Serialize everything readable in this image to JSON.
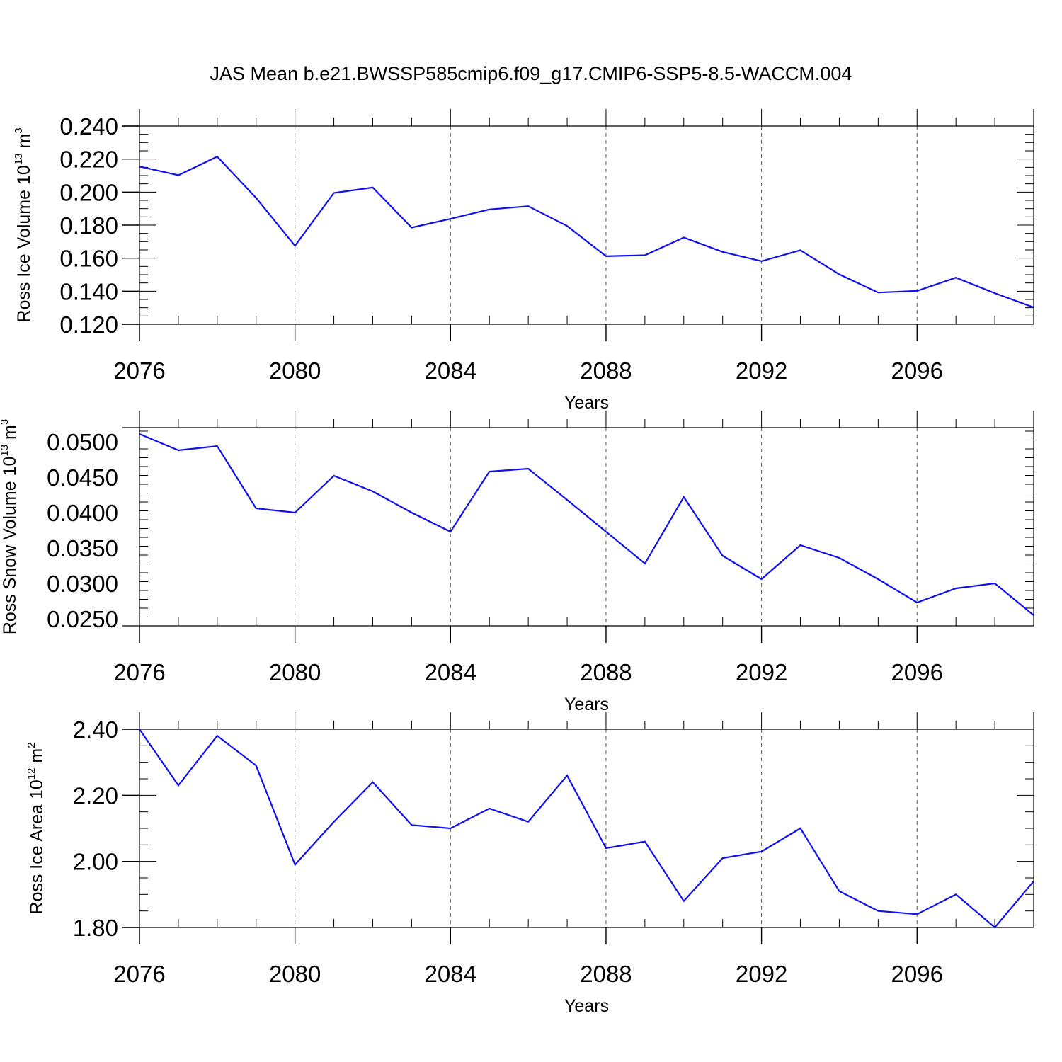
{
  "title": "JAS Mean b.e21.BWSSP585cmip6.f09_g17.CMIP6-SSP5-8.5-WACCM.004",
  "colors": {
    "line": "#1010ee",
    "axis": "#000000",
    "grid": "#555555"
  },
  "chart_data": [
    {
      "type": "line",
      "ylabel": {
        "text": "Ross Ice Volume 10",
        "exp": "13",
        "unit": " m",
        "unit_exp": "3"
      },
      "xlabel": "Years",
      "x": [
        2076,
        2077,
        2078,
        2079,
        2080,
        2081,
        2082,
        2083,
        2084,
        2085,
        2086,
        2087,
        2088,
        2089,
        2090,
        2091,
        2092,
        2093,
        2094,
        2095,
        2096,
        2097,
        2098,
        2099
      ],
      "series": [
        {
          "values": [
            0.2155,
            0.2102,
            0.2215,
            0.1965,
            0.1675,
            0.1995,
            0.2028,
            0.1785,
            0.1838,
            0.1895,
            0.1915,
            0.1795,
            0.1612,
            0.1618,
            0.1725,
            0.1638,
            0.1582,
            0.1648,
            0.1502,
            0.1392,
            0.1402,
            0.1482,
            0.1388,
            0.1302
          ]
        }
      ],
      "xlim": [
        2076,
        2099
      ],
      "ylim": [
        0.12,
        0.24
      ],
      "xticks": [
        2076,
        2080,
        2084,
        2088,
        2092,
        2096
      ],
      "yticks": [
        0.12,
        0.14,
        0.16,
        0.18,
        0.2,
        0.22,
        0.24
      ],
      "ytick_labels": [
        "0.120",
        "0.140",
        "0.160",
        "0.180",
        "0.200",
        "0.220",
        "0.240"
      ],
      "grid": "vertical dashed at major x ticks"
    },
    {
      "type": "line",
      "ylabel": {
        "text": "Ross Snow Volume 10",
        "exp": "13",
        "unit": " m",
        "unit_exp": "3"
      },
      "xlabel": "Years",
      "x": [
        2076,
        2077,
        2078,
        2079,
        2080,
        2081,
        2082,
        2083,
        2084,
        2085,
        2086,
        2087,
        2088,
        2089,
        2090,
        2091,
        2092,
        2093,
        2094,
        2095,
        2096,
        2097,
        2098,
        2099
      ],
      "series": [
        {
          "values": [
            0.0511,
            0.0488,
            0.0494,
            0.0406,
            0.04,
            0.0452,
            0.043,
            0.04,
            0.0373,
            0.0458,
            0.0462,
            0.0418,
            0.0373,
            0.0328,
            0.0422,
            0.0339,
            0.0306,
            0.0354,
            0.0336,
            0.0306,
            0.0273,
            0.0293,
            0.03,
            0.0255
          ]
        }
      ],
      "xlim": [
        2076,
        2099
      ],
      "ylim": [
        0.024,
        0.052
      ],
      "xticks": [
        2076,
        2080,
        2084,
        2088,
        2092,
        2096
      ],
      "yticks": [
        0.025,
        0.03,
        0.035,
        0.04,
        0.045,
        0.05
      ],
      "ytick_labels": [
        "0.0250",
        "0.0300",
        "0.0350",
        "0.0400",
        "0.0450",
        "0.0500"
      ],
      "grid": "vertical dashed at major x ticks"
    },
    {
      "type": "line",
      "ylabel": {
        "text": "Ross Ice Area 10",
        "exp": "12",
        "unit": " m",
        "unit_exp": "2"
      },
      "xlabel": "Years",
      "x": [
        2076,
        2077,
        2078,
        2079,
        2080,
        2081,
        2082,
        2083,
        2084,
        2085,
        2086,
        2087,
        2088,
        2089,
        2090,
        2091,
        2092,
        2093,
        2094,
        2095,
        2096,
        2097,
        2098,
        2099
      ],
      "series": [
        {
          "values": [
            2.4,
            2.23,
            2.38,
            2.29,
            1.99,
            2.12,
            2.24,
            2.11,
            2.1,
            2.16,
            2.12,
            2.26,
            2.04,
            2.06,
            1.88,
            2.01,
            2.03,
            2.1,
            1.91,
            1.85,
            1.84,
            1.9,
            1.8,
            1.94
          ]
        }
      ],
      "xlim": [
        2076,
        2099
      ],
      "ylim": [
        1.8,
        2.4
      ],
      "xticks": [
        2076,
        2080,
        2084,
        2088,
        2092,
        2096
      ],
      "yticks": [
        1.8,
        2.0,
        2.2,
        2.4
      ],
      "ytick_labels": [
        "1.80",
        "2.00",
        "2.20",
        "2.40"
      ],
      "grid": "vertical dashed at major x ticks"
    }
  ]
}
